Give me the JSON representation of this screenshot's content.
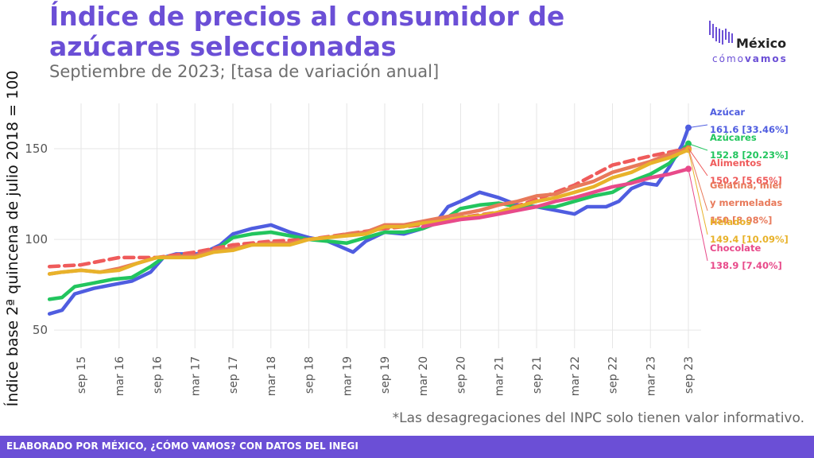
{
  "header": {
    "title": "Índice de precios al consumidor de azúcares seleccionadas",
    "subtitle": "Septiembre de 2023; [tasa de variación anual]"
  },
  "logo": {
    "name": "México",
    "tagline_light": "cómo",
    "tagline_bold": "vamos"
  },
  "footnote": "*Las desagregaciones del INPC solo tienen valor informativo.",
  "footer": "ELABORADO POR MÉXICO, ¿CÓMO VAMOS? CON DATOS DEL INEGI",
  "colors": {
    "accent": "#6b4fd6"
  },
  "chart_data": {
    "type": "line",
    "ylabel": "Índice base 2ª quincena de julio 2018 = 100",
    "ylim": [
      40,
      175
    ],
    "yticks": [
      50,
      100,
      150
    ],
    "x_start": "2015-04",
    "x_end": "2023-09",
    "xticks": [
      "2015-09",
      "2016-03",
      "2016-09",
      "2017-03",
      "2017-09",
      "2018-03",
      "2018-09",
      "2019-03",
      "2019-09",
      "2020-03",
      "2020-09",
      "2021-03",
      "2021-09",
      "2022-03",
      "2022-09",
      "2023-03",
      "2023-09"
    ],
    "xtick_labels": [
      "sep 15",
      "mar 16",
      "sep 16",
      "mar 17",
      "sep 17",
      "mar 18",
      "sep 18",
      "mar 19",
      "sep 19",
      "mar 20",
      "sep 20",
      "mar 21",
      "sep 21",
      "mar 22",
      "sep 22",
      "mar 23",
      "sep 23"
    ],
    "grid": true,
    "series": [
      {
        "name": "Azúcar",
        "color": "#4f5de0",
        "dashed": false,
        "last_value": "161.6 [33.46%]",
        "points": [
          [
            "2015-04",
            59
          ],
          [
            "2015-06",
            61
          ],
          [
            "2015-08",
            70
          ],
          [
            "2015-11",
            73
          ],
          [
            "2016-02",
            75
          ],
          [
            "2016-05",
            77
          ],
          [
            "2016-08",
            82
          ],
          [
            "2016-10",
            90
          ],
          [
            "2016-12",
            92
          ],
          [
            "2017-04",
            92
          ],
          [
            "2017-07",
            97
          ],
          [
            "2017-09",
            103
          ],
          [
            "2017-12",
            106
          ],
          [
            "2018-03",
            108
          ],
          [
            "2018-06",
            104
          ],
          [
            "2018-09",
            101
          ],
          [
            "2018-12",
            99
          ],
          [
            "2019-02",
            96
          ],
          [
            "2019-04",
            93
          ],
          [
            "2019-06",
            99
          ],
          [
            "2019-09",
            104
          ],
          [
            "2019-12",
            103
          ],
          [
            "2020-03",
            106
          ],
          [
            "2020-05",
            109
          ],
          [
            "2020-07",
            118
          ],
          [
            "2020-09",
            121
          ],
          [
            "2020-12",
            126
          ],
          [
            "2021-03",
            123
          ],
          [
            "2021-06",
            119
          ],
          [
            "2021-09",
            118
          ],
          [
            "2021-12",
            116
          ],
          [
            "2022-03",
            114
          ],
          [
            "2022-05",
            118
          ],
          [
            "2022-08",
            118
          ],
          [
            "2022-10",
            121
          ],
          [
            "2022-12",
            128
          ],
          [
            "2023-02",
            131
          ],
          [
            "2023-04",
            130
          ],
          [
            "2023-06",
            140
          ],
          [
            "2023-08",
            152
          ],
          [
            "2023-09",
            161.6
          ]
        ]
      },
      {
        "name": "Azúcares",
        "color": "#22c55e",
        "dashed": false,
        "last_value": "152.8 [20.23%]",
        "points": [
          [
            "2015-04",
            67
          ],
          [
            "2015-06",
            68
          ],
          [
            "2015-08",
            74
          ],
          [
            "2015-11",
            76
          ],
          [
            "2016-02",
            78
          ],
          [
            "2016-05",
            79
          ],
          [
            "2016-08",
            85
          ],
          [
            "2016-10",
            90
          ],
          [
            "2016-12",
            91
          ],
          [
            "2017-04",
            91
          ],
          [
            "2017-07",
            96
          ],
          [
            "2017-09",
            101
          ],
          [
            "2017-12",
            103
          ],
          [
            "2018-03",
            104
          ],
          [
            "2018-06",
            102
          ],
          [
            "2018-09",
            100
          ],
          [
            "2018-12",
            99
          ],
          [
            "2019-03",
            98
          ],
          [
            "2019-06",
            101
          ],
          [
            "2019-09",
            104
          ],
          [
            "2019-12",
            104
          ],
          [
            "2020-03",
            106
          ],
          [
            "2020-06",
            110
          ],
          [
            "2020-09",
            117
          ],
          [
            "2020-12",
            119
          ],
          [
            "2021-03",
            120
          ],
          [
            "2021-06",
            118
          ],
          [
            "2021-09",
            118
          ],
          [
            "2021-12",
            118
          ],
          [
            "2022-03",
            121
          ],
          [
            "2022-06",
            124
          ],
          [
            "2022-09",
            126
          ],
          [
            "2022-12",
            132
          ],
          [
            "2023-03",
            136
          ],
          [
            "2023-06",
            142
          ],
          [
            "2023-09",
            152.8
          ]
        ]
      },
      {
        "name": "Alimentos",
        "color": "#ef5b5b",
        "dashed": true,
        "last_value": "150.2 [5.65%]",
        "points": [
          [
            "2015-04",
            85
          ],
          [
            "2015-09",
            86
          ],
          [
            "2016-03",
            90
          ],
          [
            "2016-09",
            90
          ],
          [
            "2017-03",
            93
          ],
          [
            "2017-09",
            97
          ],
          [
            "2018-03",
            99
          ],
          [
            "2018-09",
            100
          ],
          [
            "2019-03",
            103
          ],
          [
            "2019-09",
            106
          ],
          [
            "2020-03",
            108
          ],
          [
            "2020-09",
            112
          ],
          [
            "2021-03",
            115
          ],
          [
            "2021-09",
            122
          ],
          [
            "2022-03",
            130
          ],
          [
            "2022-09",
            141
          ],
          [
            "2023-03",
            146
          ],
          [
            "2023-09",
            150.2
          ]
        ]
      },
      {
        "name": "Gelatina, miel y mermeladas",
        "color": "#e8795a",
        "dashed": false,
        "last_value": "150 [8.98%]",
        "points": [
          [
            "2015-04",
            81
          ],
          [
            "2015-06",
            82
          ],
          [
            "2015-09",
            83
          ],
          [
            "2015-12",
            82
          ],
          [
            "2016-03",
            84
          ],
          [
            "2016-06",
            87
          ],
          [
            "2016-09",
            90
          ],
          [
            "2017-03",
            91
          ],
          [
            "2017-06",
            94
          ],
          [
            "2017-09",
            95
          ],
          [
            "2017-12",
            97
          ],
          [
            "2018-03",
            98
          ],
          [
            "2018-06",
            98
          ],
          [
            "2018-09",
            100
          ],
          [
            "2018-12",
            101
          ],
          [
            "2019-03",
            103
          ],
          [
            "2019-06",
            104
          ],
          [
            "2019-09",
            108
          ],
          [
            "2019-12",
            108
          ],
          [
            "2020-03",
            110
          ],
          [
            "2020-06",
            112
          ],
          [
            "2020-09",
            114
          ],
          [
            "2020-12",
            116
          ],
          [
            "2021-03",
            119
          ],
          [
            "2021-06",
            121
          ],
          [
            "2021-09",
            124
          ],
          [
            "2021-12",
            125
          ],
          [
            "2022-03",
            129
          ],
          [
            "2022-06",
            132
          ],
          [
            "2022-09",
            137
          ],
          [
            "2022-12",
            140
          ],
          [
            "2023-03",
            143
          ],
          [
            "2023-06",
            147
          ],
          [
            "2023-09",
            150
          ]
        ]
      },
      {
        "name": "Helados",
        "color": "#e8b22a",
        "dashed": false,
        "last_value": "149.4 [10.09%]",
        "points": [
          [
            "2015-04",
            81
          ],
          [
            "2015-06",
            82
          ],
          [
            "2015-09",
            83
          ],
          [
            "2015-12",
            82
          ],
          [
            "2016-03",
            83
          ],
          [
            "2016-06",
            87
          ],
          [
            "2016-09",
            90
          ],
          [
            "2017-03",
            90
          ],
          [
            "2017-06",
            93
          ],
          [
            "2017-09",
            94
          ],
          [
            "2017-12",
            97
          ],
          [
            "2018-03",
            97
          ],
          [
            "2018-06",
            97
          ],
          [
            "2018-09",
            100
          ],
          [
            "2018-12",
            101
          ],
          [
            "2019-03",
            102
          ],
          [
            "2019-06",
            103
          ],
          [
            "2019-09",
            107
          ],
          [
            "2019-12",
            107
          ],
          [
            "2020-03",
            109
          ],
          [
            "2020-06",
            110
          ],
          [
            "2020-09",
            112
          ],
          [
            "2020-12",
            113
          ],
          [
            "2021-03",
            115
          ],
          [
            "2021-06",
            118
          ],
          [
            "2021-09",
            121
          ],
          [
            "2021-12",
            123
          ],
          [
            "2022-03",
            126
          ],
          [
            "2022-06",
            129
          ],
          [
            "2022-09",
            134
          ],
          [
            "2022-12",
            137
          ],
          [
            "2023-03",
            142
          ],
          [
            "2023-06",
            145
          ],
          [
            "2023-09",
            149.4
          ]
        ]
      },
      {
        "name": "Chocolate",
        "color": "#e84a8a",
        "dashed": false,
        "last_value": "138.9 [7.40%]",
        "points": [
          [
            "2020-03",
            107
          ],
          [
            "2020-06",
            109
          ],
          [
            "2020-09",
            111
          ],
          [
            "2020-12",
            112
          ],
          [
            "2021-03",
            114
          ],
          [
            "2021-06",
            116
          ],
          [
            "2021-09",
            118
          ],
          [
            "2021-12",
            121
          ],
          [
            "2022-03",
            123
          ],
          [
            "2022-06",
            126
          ],
          [
            "2022-09",
            129
          ],
          [
            "2022-12",
            131
          ],
          [
            "2023-03",
            134
          ],
          [
            "2023-06",
            136
          ],
          [
            "2023-09",
            138.9
          ]
        ]
      }
    ]
  }
}
